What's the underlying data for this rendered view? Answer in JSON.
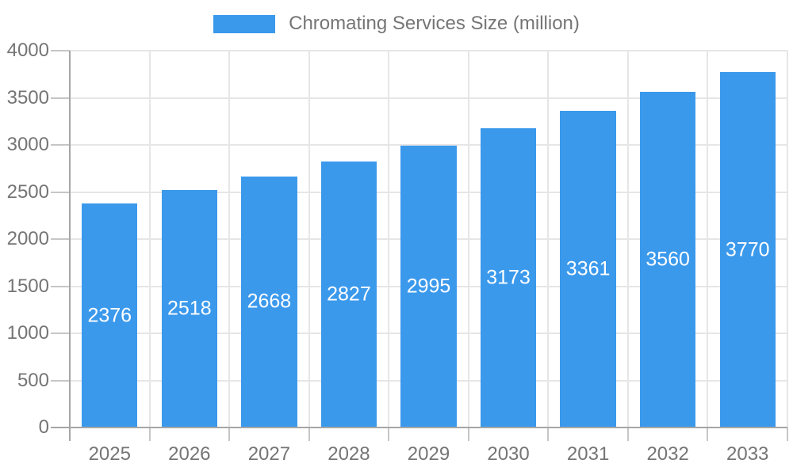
{
  "legend": {
    "label": "Chromating Services Size (million)"
  },
  "chart_data": {
    "type": "bar",
    "title": "Chromating Services Size (million)",
    "series_name": "Chromating Services Size (million)",
    "categories": [
      "2025",
      "2026",
      "2027",
      "2028",
      "2029",
      "2030",
      "2031",
      "2032",
      "2033"
    ],
    "values": [
      2376,
      2518,
      2668,
      2827,
      2995,
      3173,
      3361,
      3560,
      3770
    ],
    "value_labels": [
      "2376",
      "2518",
      "2668",
      "2827",
      "2995",
      "3173",
      "3361",
      "3560",
      "3770"
    ],
    "xlabel": "",
    "ylabel": "",
    "ylim": [
      0,
      4000
    ],
    "ytick_step": 500,
    "yticks": [
      0,
      500,
      1000,
      1500,
      2000,
      2500,
      3000,
      3500,
      4000
    ],
    "grid": "horizontal and vertical category boundaries",
    "legend_position": "top-center",
    "value_label_position": "centered inside bar"
  },
  "colors": {
    "bar": "#3b99ec",
    "value_text": "#ffffff",
    "axis_text": "#757575",
    "legend_text": "#757575",
    "gridline": "#e6e6e6",
    "axis_line": "#a6a6a6",
    "tick": "#c6c6c6",
    "background": "#ffffff"
  }
}
